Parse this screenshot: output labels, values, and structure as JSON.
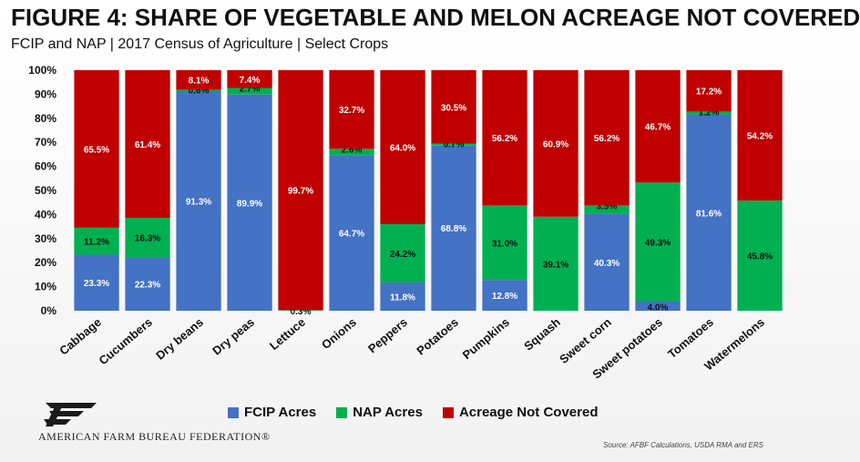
{
  "header": {
    "title": "FIGURE 4: SHARE OF VEGETABLE AND MELON ACREAGE NOT COVERED",
    "subtitle": "FCIP and NAP | 2017 Census of Agriculture | Select Crops"
  },
  "footer": {
    "organization": "AMERICAN FARM BUREAU FEDERATION®",
    "source": "Source: AFBF Calculations, USDA RMA and ERS"
  },
  "colors": {
    "fcip": "#4472C4",
    "nap": "#00B050",
    "not_covered": "#C00000"
  },
  "chart_data": {
    "type": "bar",
    "stacked": true,
    "percent": true,
    "categories": [
      "Cabbage",
      "Cucumbers",
      "Dry beans",
      "Dry peas",
      "Lettuce",
      "Onions",
      "Peppers",
      "Potatoes",
      "Pumpkins",
      "Squash",
      "Sweet corn",
      "Sweet potatoes",
      "Tomatoes",
      "Watermelons"
    ],
    "series": [
      {
        "name": "FCIP Acres",
        "color": "#4472C4",
        "values": [
          23.3,
          22.3,
          91.3,
          89.9,
          0,
          64.7,
          11.8,
          68.8,
          12.8,
          0,
          40.3,
          4.0,
          81.6,
          0
        ],
        "labels": [
          "23.3%",
          "22.3%",
          "91.3%",
          "89.9%",
          "",
          "64.7%",
          "11.8%",
          "68.8%",
          "12.8%",
          "",
          "40.3%",
          "4.0%",
          "81.6%",
          ""
        ]
      },
      {
        "name": "NAP Acres",
        "color": "#00B050",
        "values": [
          11.2,
          16.3,
          0.6,
          2.7,
          0.3,
          2.6,
          24.2,
          0.7,
          31.0,
          39.1,
          3.5,
          49.3,
          1.2,
          45.8
        ],
        "labels": [
          "11.2%",
          "16.3%",
          "0.6%",
          "2.7%",
          "0.3%",
          "2.6%",
          "24.2%",
          "0.7%",
          "31.0%",
          "39.1%",
          "3.5%",
          "49.3%",
          "1.2%",
          "45.8%"
        ]
      },
      {
        "name": "Acreage Not Covered",
        "color": "#C00000",
        "values": [
          65.5,
          61.4,
          8.1,
          7.4,
          99.7,
          32.7,
          64.0,
          30.5,
          56.2,
          60.9,
          56.2,
          46.7,
          17.2,
          54.2
        ],
        "labels": [
          "65.5%",
          "61.4%",
          "8.1%",
          "7.4%",
          "99.7%",
          "32.7%",
          "64.0%",
          "30.5%",
          "56.2%",
          "60.9%",
          "56.2%",
          "46.7%",
          "17.2%",
          "54.2%"
        ]
      }
    ],
    "y_ticks": [
      "0%",
      "10%",
      "20%",
      "30%",
      "40%",
      "50%",
      "60%",
      "70%",
      "80%",
      "90%",
      "100%"
    ],
    "ylim": [
      0,
      100
    ],
    "legend": [
      "FCIP Acres",
      "NAP Acres",
      "Acreage Not Covered"
    ],
    "legend_position": "bottom",
    "grid": false
  }
}
